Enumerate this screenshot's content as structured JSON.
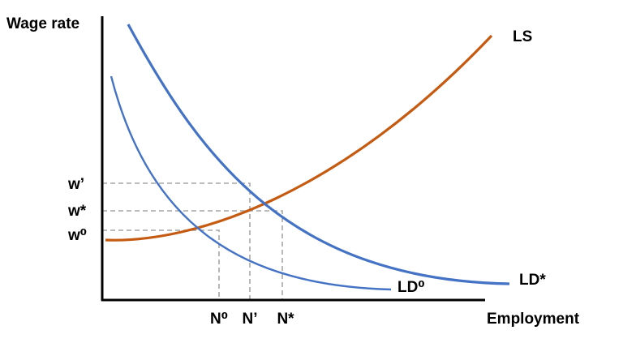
{
  "axes": {
    "y_label": "Wage rate",
    "x_label": "Employment"
  },
  "curves": {
    "supply": "LS",
    "demand_new": "LD*",
    "demand_old": "LD⁰"
  },
  "wage_labels": [
    "w’",
    "w*",
    "w⁰"
  ],
  "employment_labels": [
    "N⁰",
    "N’",
    "N*"
  ]
}
